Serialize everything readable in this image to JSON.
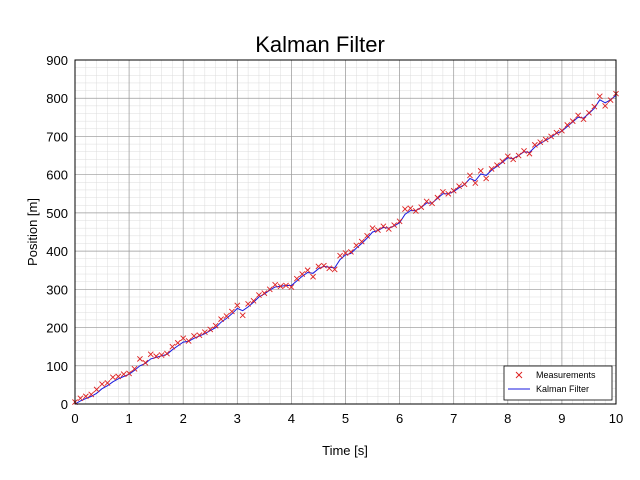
{
  "chart_data": {
    "type": "line",
    "title": "Kalman Filter",
    "xlabel": "Time [s]",
    "ylabel": "Position [m]",
    "xlim": [
      0,
      10
    ],
    "ylim": [
      0,
      900
    ],
    "xticks": [
      "0",
      "1",
      "2",
      "3",
      "4",
      "5",
      "6",
      "7",
      "8",
      "9",
      "10"
    ],
    "yticks": [
      "0",
      "100",
      "200",
      "300",
      "400",
      "500",
      "600",
      "700",
      "800",
      "900"
    ],
    "grid": true,
    "legend_position": "bottom-right",
    "series": [
      {
        "name": "Measurements",
        "marker": "x",
        "color": "#dd2222",
        "x": [
          0.0,
          0.1,
          0.2,
          0.3,
          0.4,
          0.5,
          0.6,
          0.7,
          0.8,
          0.9,
          1.0,
          1.1,
          1.2,
          1.3,
          1.4,
          1.5,
          1.6,
          1.7,
          1.8,
          1.9,
          2.0,
          2.1,
          2.2,
          2.3,
          2.4,
          2.5,
          2.6,
          2.7,
          2.8,
          2.9,
          3.0,
          3.1,
          3.2,
          3.3,
          3.4,
          3.5,
          3.6,
          3.7,
          3.8,
          3.9,
          4.0,
          4.1,
          4.2,
          4.3,
          4.4,
          4.5,
          4.6,
          4.7,
          4.8,
          4.9,
          5.0,
          5.1,
          5.2,
          5.3,
          5.4,
          5.5,
          5.6,
          5.7,
          5.8,
          5.9,
          6.0,
          6.1,
          6.2,
          6.3,
          6.4,
          6.5,
          6.6,
          6.7,
          6.8,
          6.9,
          7.0,
          7.1,
          7.2,
          7.3,
          7.4,
          7.5,
          7.6,
          7.7,
          7.8,
          7.9,
          8.0,
          8.1,
          8.2,
          8.3,
          8.4,
          8.5,
          8.6,
          8.7,
          8.8,
          8.9,
          9.0,
          9.1,
          9.2,
          9.3,
          9.4,
          9.5,
          9.6,
          9.7,
          9.8,
          9.9,
          10.0
        ],
        "y": [
          5,
          15,
          20,
          25,
          38,
          52,
          55,
          70,
          72,
          78,
          80,
          92,
          118,
          108,
          130,
          125,
          128,
          132,
          150,
          160,
          172,
          165,
          178,
          180,
          188,
          195,
          205,
          222,
          230,
          242,
          258,
          232,
          262,
          270,
          285,
          290,
          300,
          312,
          308,
          310,
          306,
          328,
          340,
          350,
          333,
          360,
          362,
          355,
          352,
          388,
          395,
          398,
          415,
          425,
          440,
          460,
          455,
          465,
          458,
          468,
          478,
          510,
          512,
          505,
          515,
          530,
          525,
          540,
          555,
          550,
          558,
          570,
          575,
          598,
          578,
          610,
          590,
          615,
          625,
          635,
          648,
          640,
          650,
          662,
          655,
          678,
          685,
          692,
          700,
          710,
          715,
          730,
          740,
          755,
          745,
          762,
          778,
          805,
          780,
          795,
          812
        ]
      },
      {
        "name": "Kalman Filter",
        "color": "#1a1adf",
        "x": [
          0.0,
          0.1,
          0.2,
          0.3,
          0.4,
          0.5,
          0.6,
          0.7,
          0.8,
          0.9,
          1.0,
          1.1,
          1.2,
          1.3,
          1.4,
          1.5,
          1.6,
          1.7,
          1.8,
          1.9,
          2.0,
          2.1,
          2.2,
          2.3,
          2.4,
          2.5,
          2.6,
          2.7,
          2.8,
          2.9,
          3.0,
          3.1,
          3.2,
          3.3,
          3.4,
          3.5,
          3.6,
          3.7,
          3.8,
          3.9,
          4.0,
          4.1,
          4.2,
          4.3,
          4.4,
          4.5,
          4.6,
          4.7,
          4.8,
          4.9,
          5.0,
          5.1,
          5.2,
          5.3,
          5.4,
          5.5,
          5.6,
          5.7,
          5.8,
          5.9,
          6.0,
          6.1,
          6.2,
          6.3,
          6.4,
          6.5,
          6.6,
          6.7,
          6.8,
          6.9,
          7.0,
          7.1,
          7.2,
          7.3,
          7.4,
          7.5,
          7.6,
          7.7,
          7.8,
          7.9,
          8.0,
          8.1,
          8.2,
          8.3,
          8.4,
          8.5,
          8.6,
          8.7,
          8.8,
          8.9,
          9.0,
          9.1,
          9.2,
          9.3,
          9.4,
          9.5,
          9.6,
          9.7,
          9.8,
          9.9,
          10.0
        ],
        "y": [
          0,
          8,
          14,
          20,
          28,
          40,
          48,
          58,
          66,
          72,
          78,
          88,
          100,
          106,
          118,
          122,
          126,
          130,
          142,
          152,
          162,
          164,
          172,
          178,
          184,
          192,
          200,
          214,
          224,
          236,
          250,
          244,
          254,
          266,
          280,
          288,
          298,
          306,
          308,
          310,
          310,
          322,
          334,
          344,
          342,
          354,
          360,
          358,
          356,
          378,
          390,
          394,
          408,
          420,
          434,
          450,
          454,
          462,
          460,
          466,
          474,
          496,
          506,
          506,
          514,
          526,
          526,
          538,
          550,
          550,
          556,
          566,
          574,
          590,
          584,
          602,
          598,
          612,
          622,
          632,
          644,
          642,
          650,
          660,
          658,
          672,
          682,
          690,
          698,
          708,
          714,
          726,
          738,
          750,
          748,
          760,
          774,
          796,
          788,
          796,
          808
        ]
      }
    ]
  }
}
